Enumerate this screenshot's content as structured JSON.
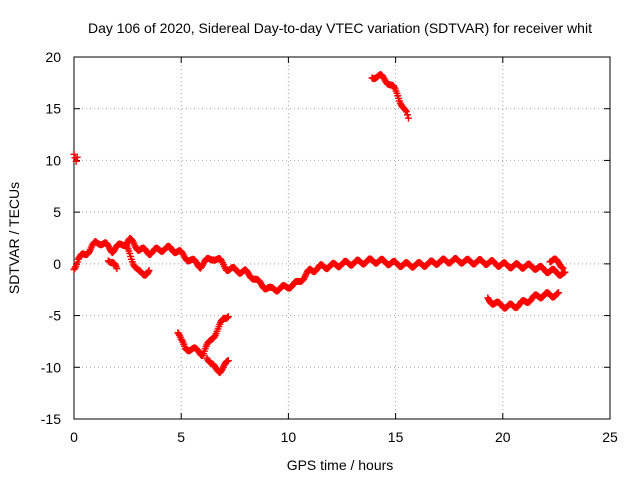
{
  "chart_data": {
    "type": "scatter",
    "title": "Day 106 of 2020, Sidereal Day-to-day VTEC variation (SDTVAR) for receiver whit",
    "xlabel": "GPS time / hours",
    "ylabel": "SDTVAR / TECUs",
    "xlim": [
      0,
      25
    ],
    "ylim": [
      -15,
      20
    ],
    "xticks": [
      0,
      5,
      10,
      15,
      20,
      25
    ],
    "yticks": [
      -15,
      -10,
      -5,
      0,
      5,
      10,
      15,
      20
    ],
    "grid": true,
    "legend": "none",
    "marker": "plus",
    "series_color": "#ff0000",
    "series": [
      {
        "name": "upper-left",
        "x": [
          0.0,
          0.05,
          0.1,
          0.15
        ],
        "y": [
          10.8,
          10.4,
          10.0,
          10.3
        ]
      },
      {
        "name": "main",
        "x": [
          0.0,
          0.2,
          0.5,
          0.8,
          1.0,
          1.2,
          1.5,
          1.8,
          2.0,
          2.3,
          2.6,
          3.0,
          3.5,
          4.0,
          4.5,
          5.0,
          5.3,
          5.6,
          5.9,
          6.2,
          6.5,
          6.8,
          7.1,
          7.5,
          8.0,
          8.3,
          8.6,
          8.9,
          9.2,
          9.5,
          9.8,
          10.1,
          10.4,
          10.7,
          11.0,
          11.5,
          12.0,
          12.5,
          13.0,
          13.5,
          14.0,
          14.5,
          15.0,
          15.5,
          16.0,
          16.5,
          17.0,
          17.5,
          18.0,
          18.5,
          19.0,
          19.5,
          20.0,
          20.5,
          21.0,
          21.5,
          22.0,
          22.5,
          22.9
        ],
        "y": [
          -0.4,
          0.5,
          0.9,
          1.5,
          2.0,
          2.1,
          1.8,
          1.3,
          1.6,
          1.9,
          2.3,
          1.5,
          1.1,
          1.4,
          1.5,
          1.0,
          0.5,
          0.2,
          -0.2,
          0.3,
          0.6,
          0.3,
          -0.4,
          -0.6,
          -0.8,
          -1.2,
          -1.8,
          -2.2,
          -2.5,
          -2.4,
          -2.3,
          -2.1,
          -1.9,
          -1.3,
          -0.7,
          -0.3,
          -0.2,
          0.0,
          0.1,
          0.2,
          0.3,
          0.2,
          0.0,
          -0.1,
          -0.1,
          0.0,
          0.2,
          0.3,
          0.3,
          0.2,
          0.2,
          0.1,
          -0.1,
          -0.2,
          -0.2,
          -0.3,
          -0.6,
          -0.8,
          -1.0
        ]
      },
      {
        "name": "branch-1.6h",
        "x": [
          1.6,
          1.75,
          1.9,
          2.0
        ],
        "y": [
          0.5,
          0.0,
          -0.2,
          -0.4
        ]
      },
      {
        "name": "branch-2.3h",
        "x": [
          2.4,
          2.6,
          2.8,
          3.0,
          3.2,
          3.4,
          3.5
        ],
        "y": [
          1.7,
          1.0,
          0.0,
          -0.8,
          -1.0,
          -0.8,
          -0.7
        ]
      },
      {
        "name": "dip-5h",
        "x": [
          4.85,
          5.0,
          5.2,
          5.5,
          5.8,
          6.0,
          6.2,
          6.5,
          6.8,
          7.0,
          7.2
        ],
        "y": [
          -6.6,
          -7.5,
          -8.1,
          -8.3,
          -8.4,
          -8.7,
          -8.0,
          -7.0,
          -6.0,
          -5.3,
          -4.9
        ]
      },
      {
        "name": "dip-6.5h",
        "x": [
          6.2,
          6.4,
          6.6,
          6.8,
          7.0,
          7.2
        ],
        "y": [
          -8.9,
          -9.7,
          -10.2,
          -10.3,
          -9.9,
          -9.5
        ]
      },
      {
        "name": "upper-14h",
        "x": [
          13.9,
          14.1,
          14.3,
          14.5,
          14.7,
          14.9,
          15.1,
          15.3,
          15.5,
          15.6
        ],
        "y": [
          18.0,
          18.2,
          18.1,
          17.8,
          17.5,
          17.0,
          16.3,
          15.4,
          14.5,
          13.9
        ]
      },
      {
        "name": "lower-20h",
        "x": [
          19.3,
          19.6,
          19.9,
          20.2,
          20.5,
          20.8,
          21.1,
          21.4,
          21.7,
          22.0,
          22.3,
          22.6
        ],
        "y": [
          -3.4,
          -3.8,
          -4.0,
          -4.1,
          -4.1,
          -3.9,
          -3.6,
          -3.3,
          -3.1,
          -3.0,
          -3.0,
          -3.0
        ]
      },
      {
        "name": "right-end",
        "x": [
          22.2,
          22.4,
          22.6,
          22.8
        ],
        "y": [
          0.4,
          0.3,
          0.1,
          -0.2
        ]
      }
    ]
  }
}
